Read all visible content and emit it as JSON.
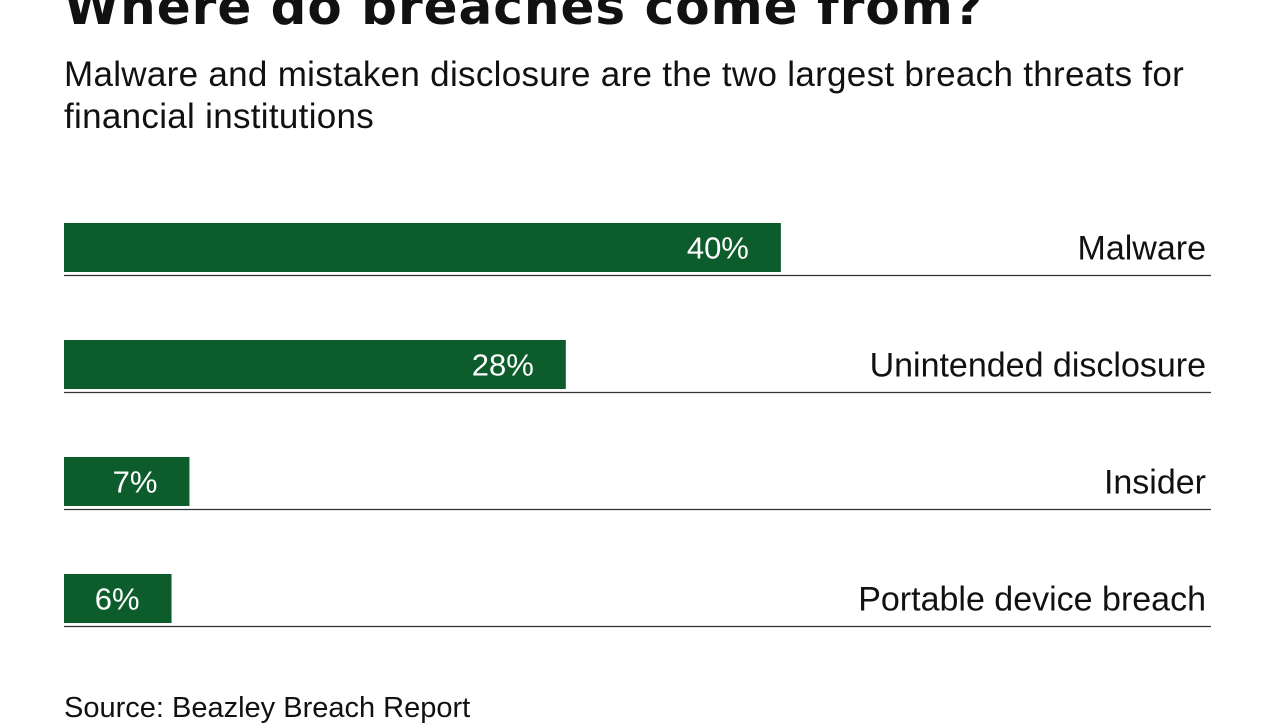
{
  "header": {
    "title": "Where do breaches come from?",
    "subtitle": "Malware and mistaken disclosure are the two largest breach threats for financial institutions"
  },
  "footer": {
    "source": "Source: Beazley Breach Report"
  },
  "colors": {
    "bar": "#0d5c2b",
    "bar_label": "#ffffff",
    "category_text": "#111111",
    "baseline": "#333333"
  },
  "chart_data": {
    "type": "bar",
    "orientation": "horizontal",
    "categories": [
      "Malware",
      "Unintended disclosure",
      "Insider",
      "Portable device breach"
    ],
    "values": [
      40,
      28,
      7,
      6
    ],
    "value_labels": [
      "40%",
      "28%",
      "7%",
      "6%"
    ],
    "unit": "%",
    "xlim": [
      0,
      64
    ],
    "grid": false,
    "legend": "none"
  }
}
